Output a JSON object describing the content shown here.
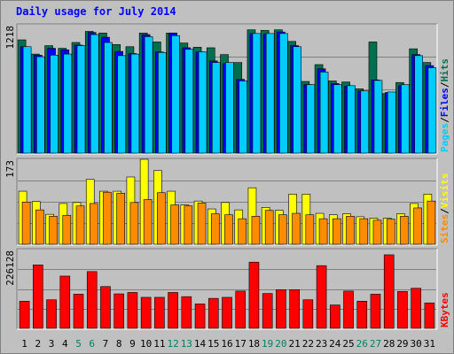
{
  "title": "Daily usage for July 2014",
  "chart_data": [
    {
      "type": "bar",
      "panel": "top",
      "ymax_label": "1218",
      "ylim": [
        0,
        1218
      ],
      "categories": [
        "1",
        "2",
        "3",
        "4",
        "5",
        "6",
        "7",
        "8",
        "9",
        "10",
        "11",
        "12",
        "13",
        "14",
        "15",
        "16",
        "17",
        "18",
        "19",
        "20",
        "21",
        "22",
        "23",
        "24",
        "25",
        "26",
        "27",
        "28",
        "29",
        "30",
        "31"
      ],
      "series": [
        {
          "name": "Hits",
          "color": "#006f4f",
          "values": [
            1075,
            940,
            1020,
            995,
            1050,
            1155,
            1140,
            1030,
            1010,
            1140,
            1055,
            1140,
            1045,
            1005,
            1000,
            935,
            860,
            1170,
            1165,
            1170,
            1060,
            680,
            840,
            685,
            675,
            610,
            1055,
            565,
            670,
            990,
            860
          ]
        },
        {
          "name": "Files",
          "color": "#0000ff",
          "values": [
            1010,
            930,
            995,
            980,
            1025,
            1145,
            1100,
            965,
            945,
            1125,
            960,
            1140,
            1000,
            960,
            875,
            850,
            700,
            1135,
            1130,
            1150,
            1020,
            650,
            800,
            660,
            635,
            590,
            695,
            575,
            640,
            935,
            830
          ]
        },
        {
          "name": "Pages",
          "color": "#00ccff",
          "values": [
            1010,
            915,
            930,
            940,
            1020,
            1125,
            1050,
            925,
            940,
            1105,
            955,
            1115,
            985,
            960,
            860,
            860,
            685,
            1135,
            1135,
            1135,
            1010,
            650,
            770,
            650,
            640,
            590,
            690,
            580,
            650,
            925,
            810
          ]
        }
      ],
      "legend": [
        "Pages",
        "/",
        "Files",
        "/",
        "Hits"
      ]
    },
    {
      "type": "bar",
      "panel": "middle",
      "ymax_label": "173",
      "ylim": [
        0,
        173
      ],
      "categories": [
        "1",
        "2",
        "3",
        "4",
        "5",
        "6",
        "7",
        "8",
        "9",
        "10",
        "11",
        "12",
        "13",
        "14",
        "15",
        "16",
        "17",
        "18",
        "19",
        "20",
        "21",
        "22",
        "23",
        "24",
        "25",
        "26",
        "27",
        "28",
        "29",
        "30",
        "31"
      ],
      "series": [
        {
          "name": "Visits",
          "color": "#ffff00",
          "values": [
            108,
            87,
            61,
            83,
            85,
            132,
            108,
            108,
            137,
            173,
            150,
            108,
            80,
            88,
            72,
            85,
            70,
            115,
            75,
            69,
            102,
            102,
            63,
            60,
            62,
            56,
            53,
            53,
            62,
            83,
            102
          ]
        },
        {
          "name": "Sites",
          "color": "#ff8c00",
          "values": [
            86,
            70,
            57,
            59,
            78,
            83,
            106,
            104,
            85,
            91,
            105,
            80,
            78,
            84,
            62,
            60,
            52,
            57,
            69,
            60,
            63,
            60,
            52,
            52,
            57,
            52,
            49,
            51,
            57,
            74,
            88
          ]
        }
      ],
      "legend": [
        "Sites",
        "/",
        "Visits"
      ]
    },
    {
      "type": "bar",
      "panel": "bottom",
      "ymax_label": "226128",
      "ylim": [
        0,
        226128
      ],
      "categories": [
        "1",
        "2",
        "3",
        "4",
        "5",
        "6",
        "7",
        "8",
        "9",
        "10",
        "11",
        "12",
        "13",
        "14",
        "15",
        "16",
        "17",
        "18",
        "19",
        "20",
        "21",
        "22",
        "23",
        "24",
        "25",
        "26",
        "27",
        "28",
        "29",
        "30",
        "31"
      ],
      "series": [
        {
          "name": "KBytes",
          "color": "#ff0000",
          "values": [
            78000,
            182000,
            82000,
            150000,
            98000,
            163000,
            120000,
            99000,
            103000,
            89000,
            89000,
            103000,
            91000,
            70000,
            86000,
            89000,
            107000,
            190000,
            100000,
            111000,
            111000,
            82000,
            180000,
            67000,
            107000,
            78000,
            98000,
            211000,
            106000,
            115000,
            73000
          ]
        }
      ],
      "legend": [
        "KBytes"
      ]
    }
  ],
  "weekend_days": [
    "5",
    "6",
    "12",
    "13",
    "19",
    "20",
    "26",
    "27"
  ],
  "colors": {
    "background": "#c0c0c0",
    "title": "#0000ff",
    "weekday_label": "#000000",
    "weekend_label": "#00805f",
    "grid": "#808080",
    "hits": "#006f4f",
    "files": "#0000ff",
    "pages": "#00ccff",
    "visits": "#ffff00",
    "sites": "#ff8c00",
    "kbytes": "#ff0000"
  }
}
